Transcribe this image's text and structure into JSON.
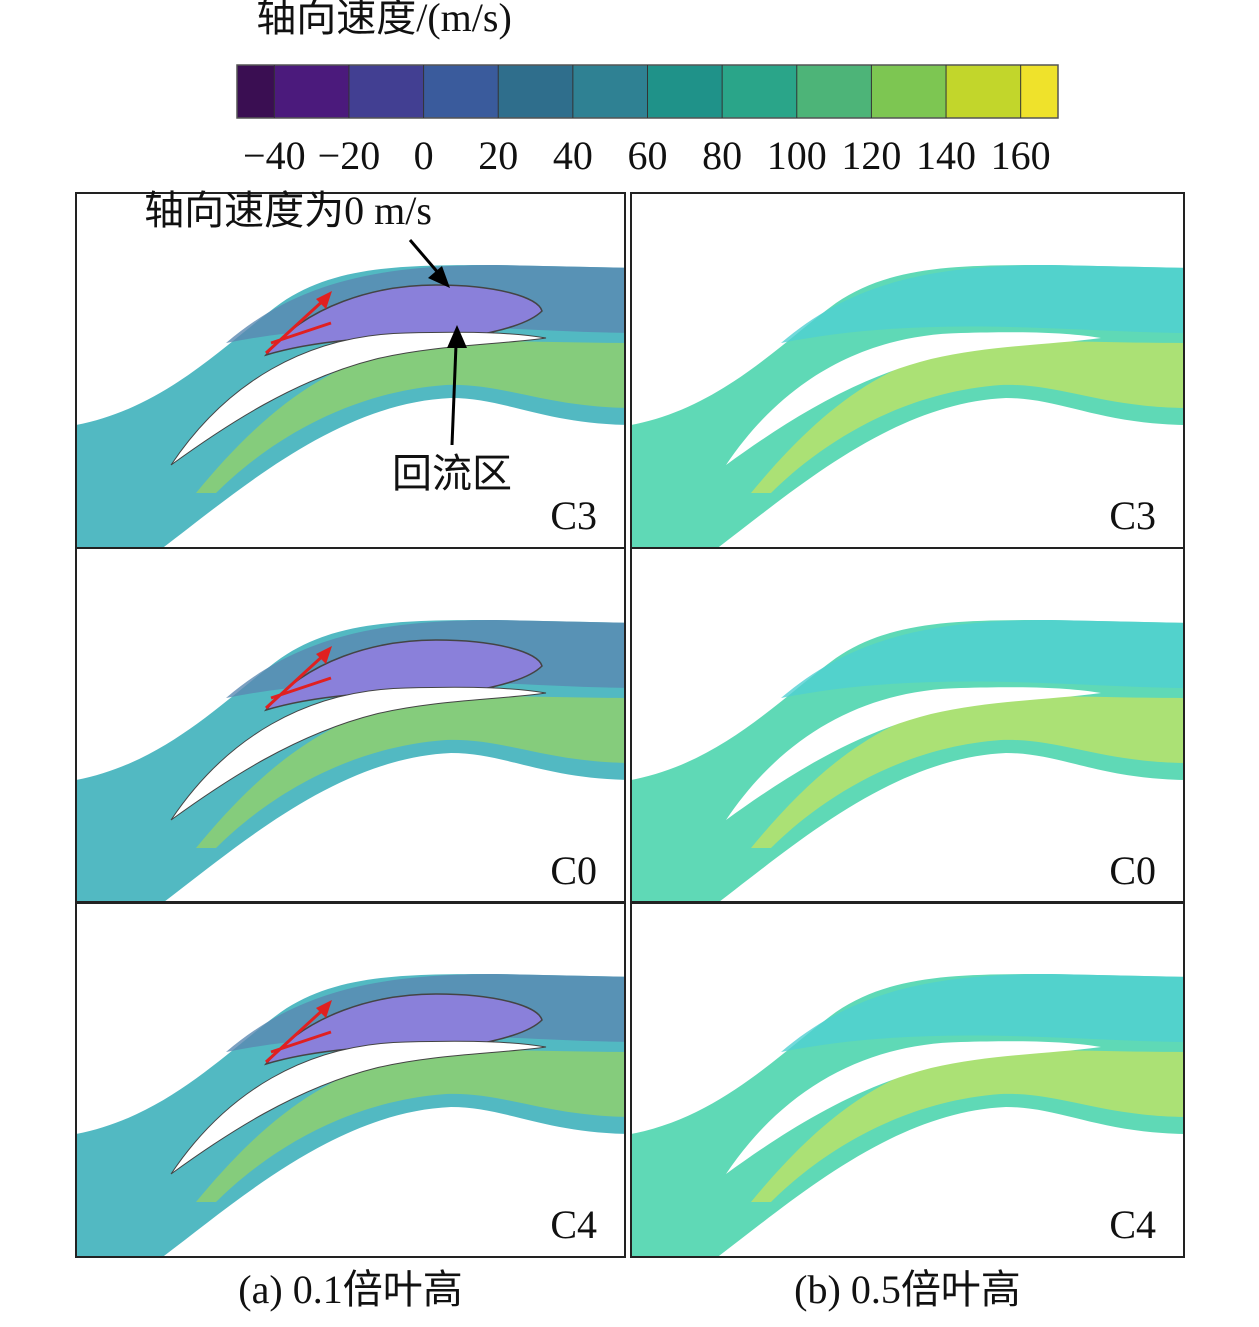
{
  "colorbar": {
    "title": "轴向速度/(m/s)",
    "lim": [
      -50,
      170
    ],
    "ticks": [
      {
        "value": -40,
        "label": "−40"
      },
      {
        "value": -20,
        "label": "−20"
      },
      0,
      20,
      40,
      60,
      80,
      100,
      120,
      140,
      160
    ],
    "colors": [
      "#3a0e52",
      "#4b1a7c",
      "#423f92",
      "#3a5b9c",
      "#2f6e8c",
      "#2f8193",
      "#1f9289",
      "#2aa589",
      "#4db478",
      "#7dc652",
      "#c2d62b",
      "#efe22b"
    ]
  },
  "annotations": {
    "zero_line": "轴向速度为0 m/s",
    "backflow": "回流区"
  },
  "columns": [
    {
      "caption": "(a) 0.1倍叶高",
      "rows": [
        "C3",
        "C0",
        "C4"
      ]
    },
    {
      "caption": "(b) 0.5倍叶高",
      "rows": [
        "C3",
        "C0",
        "C4"
      ]
    }
  ]
}
